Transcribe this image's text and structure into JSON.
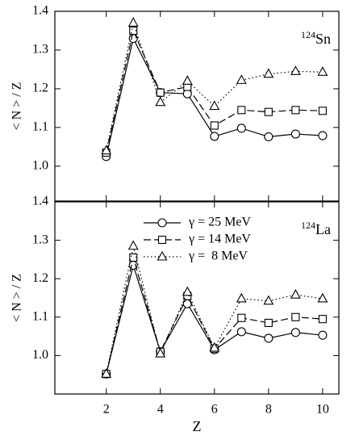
{
  "chart_data": [
    {
      "type": "line",
      "y_label": "< N > / Z",
      "annotation_mass": "124",
      "annotation_element": "Sn",
      "x": [
        2,
        3,
        4,
        5,
        6,
        7,
        8,
        9,
        10
      ],
      "xlim": [
        0.1,
        10.6
      ],
      "xticks": [
        2,
        4,
        6,
        8,
        10
      ],
      "ylim": [
        0.91,
        1.4
      ],
      "yticks": [
        {
          "value": 1,
          "label": "1.0"
        },
        1.1,
        1.2,
        1.3,
        1.4
      ],
      "series": [
        {
          "color": "#000000",
          "marker": "circle",
          "dash": "solid",
          "values": [
            1.025,
            1.33,
            1.19,
            1.187,
            1.077,
            1.098,
            1.076,
            1.083,
            1.079
          ]
        },
        {
          "color": "#000000",
          "marker": "square",
          "dash": "dashed",
          "values": [
            1.035,
            1.35,
            1.19,
            1.205,
            1.105,
            1.145,
            1.14,
            1.145,
            1.143
          ]
        },
        {
          "color": "#000000",
          "marker": "triangle",
          "dash": "dotted",
          "values": [
            1.04,
            1.37,
            1.165,
            1.22,
            1.155,
            1.222,
            1.238,
            1.245,
            1.243
          ]
        }
      ]
    },
    {
      "type": "line",
      "y_label": "< N > / Z",
      "x_label": "Z",
      "annotation_mass": "124",
      "annotation_element": "La",
      "x": [
        2,
        3,
        4,
        5,
        6,
        7,
        8,
        9,
        10
      ],
      "xlim": [
        0.1,
        10.6
      ],
      "xticks": [
        2,
        4,
        6,
        8,
        10
      ],
      "ylim": [
        0.9,
        1.4
      ],
      "yticks": [
        {
          "value": 1,
          "label": "1.0"
        },
        1.1,
        1.2,
        1.3,
        1.4
      ],
      "legend": "upper center",
      "series": [
        {
          "name": "γ = 25 MeV",
          "color": "#000000",
          "marker": "circle",
          "dash": "solid",
          "values": [
            0.952,
            1.235,
            1.01,
            1.135,
            1.015,
            1.062,
            1.045,
            1.06,
            1.053
          ]
        },
        {
          "name": "γ = 14 MeV",
          "color": "#000000",
          "marker": "square",
          "dash": "dashed",
          "values": [
            0.952,
            1.255,
            1.01,
            1.155,
            1.018,
            1.098,
            1.085,
            1.1,
            1.095
          ]
        },
        {
          "name": "γ =  8 MeV",
          "color": "#000000",
          "marker": "triangle",
          "dash": "dotted",
          "values": [
            0.952,
            1.285,
            1.005,
            1.165,
            1.02,
            1.148,
            1.142,
            1.158,
            1.148
          ]
        }
      ]
    }
  ]
}
